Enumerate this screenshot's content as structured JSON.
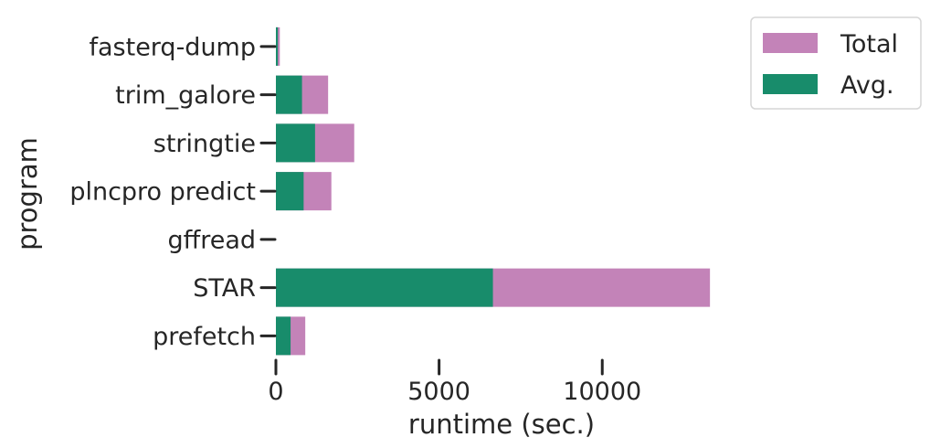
{
  "chart_data": {
    "type": "bar",
    "orientation": "horizontal",
    "stacking": "overlay",
    "categories": [
      "fasterq-dump",
      "trim_galore",
      "stringtie",
      "plncpro predict",
      "gffread",
      "STAR",
      "prefetch"
    ],
    "series": [
      {
        "name": "Total",
        "values": [
          120,
          1600,
          2400,
          1700,
          0,
          13300,
          900
        ],
        "color": "#c383b8"
      },
      {
        "name": "Avg.",
        "values": [
          60,
          800,
          1200,
          850,
          0,
          6650,
          450
        ],
        "color": "#188c6b"
      }
    ],
    "xlabel": "runtime (sec.)",
    "ylabel": "program",
    "xticks": [
      0,
      5000,
      10000
    ],
    "xtick_labels": [
      "0",
      "5000",
      "10000"
    ],
    "xlim": [
      0,
      13800
    ],
    "grid": false,
    "legend_position": "upper-right-outside",
    "legend_labels": [
      "Total",
      "Avg."
    ]
  }
}
